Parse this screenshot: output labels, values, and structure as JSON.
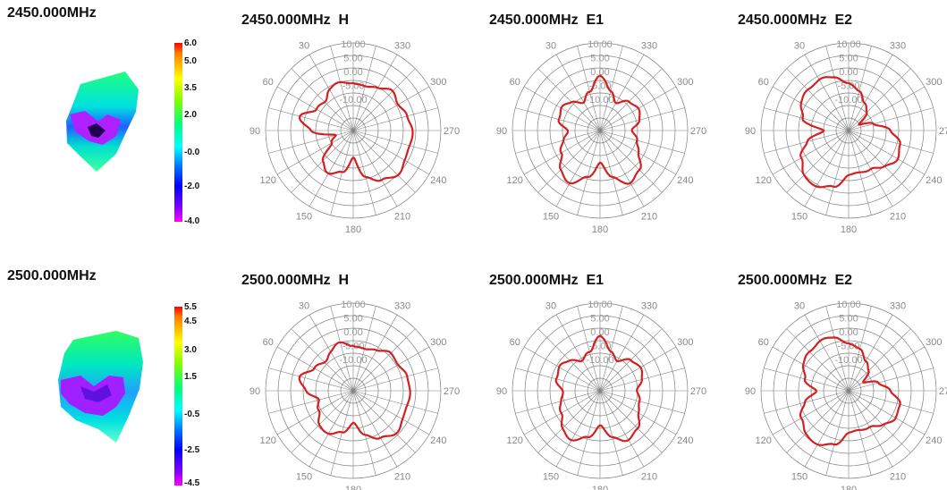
{
  "rows": [
    {
      "freq_label": "2450.000MHz",
      "colorbar": {
        "ticks": [
          "6.0",
          "5.0",
          "3.5",
          "2.0",
          "-0.0",
          "-2.0",
          "-4.0"
        ]
      }
    },
    {
      "freq_label": "2500.000MHz",
      "colorbar": {
        "ticks": [
          "5.5",
          "4.5",
          "3.0",
          "1.5",
          "-0.5",
          "-2.5",
          "-4.5"
        ]
      }
    }
  ],
  "colors": {
    "trace": "#d42020",
    "grid": "#808080",
    "text": "#111111"
  },
  "chart_data": [
    {
      "type": "polar",
      "title": "2450.000MHz  H",
      "angles_deg": [
        0,
        30,
        60,
        90,
        120,
        150,
        180,
        210,
        240,
        270,
        300,
        330
      ],
      "r_labels": [
        "10.00",
        "5.00",
        "0.00",
        "-5.00",
        "-10.00"
      ],
      "rlim": [
        -25,
        10
      ],
      "series": [
        {
          "theta": [
            0,
            15,
            30,
            45,
            60,
            75,
            90,
            105,
            120,
            135,
            150,
            165,
            180,
            195,
            210,
            225,
            240,
            255,
            270,
            285,
            300,
            315,
            330,
            345
          ],
          "r": [
            -6,
            -5,
            -6,
            -9,
            -8,
            -3,
            -8,
            -18,
            -15,
            -8,
            -5,
            -8,
            -14,
            -6,
            -2,
            0,
            -1,
            -2,
            -1,
            -3,
            -4,
            -3,
            -5,
            -7
          ]
        }
      ]
    },
    {
      "type": "polar",
      "title": "2450.000MHz  E1",
      "angles_deg": [
        0,
        30,
        60,
        90,
        120,
        150,
        180,
        210,
        240,
        270,
        300,
        330
      ],
      "r_labels": [
        "10.00",
        "5.00",
        "0.00",
        "-5.00",
        "-10.00"
      ],
      "rlim": [
        -25,
        10
      ],
      "series": [
        {
          "theta": [
            0,
            15,
            30,
            45,
            60,
            75,
            90,
            105,
            120,
            135,
            150,
            165,
            180,
            195,
            210,
            225,
            240,
            255,
            270,
            285,
            300,
            315,
            330,
            345
          ],
          "r": [
            -3,
            -9,
            -12,
            -9,
            -7,
            -8,
            -12,
            -10,
            -7,
            -3,
            -0.5,
            -6,
            -12,
            -6,
            -0.5,
            -3,
            -7,
            -10,
            -12,
            -9,
            -7,
            -9,
            -12,
            -9
          ]
        }
      ]
    },
    {
      "type": "polar",
      "title": "2450.000MHz  E2",
      "angles_deg": [
        0,
        30,
        60,
        90,
        120,
        150,
        180,
        210,
        240,
        270,
        300,
        330
      ],
      "r_labels": [
        "10.00",
        "5.00",
        "0.00",
        "-5.00",
        "-10.00"
      ],
      "rlim": [
        -25,
        10
      ],
      "series": [
        {
          "theta": [
            0,
            15,
            30,
            45,
            60,
            75,
            90,
            105,
            120,
            135,
            150,
            165,
            180,
            195,
            210,
            225,
            240,
            255,
            270,
            285,
            300,
            315,
            330,
            345
          ],
          "r": [
            -6,
            -3,
            -1.5,
            -2,
            -3,
            -6,
            -15,
            -8,
            -3,
            0,
            1,
            -2,
            -7,
            -8,
            -7,
            -5,
            -2,
            -4,
            -8,
            -15,
            -20,
            -15,
            -12,
            -9
          ]
        }
      ]
    },
    {
      "type": "polar",
      "title": "2500.000MHz  H",
      "angles_deg": [
        0,
        30,
        60,
        90,
        120,
        150,
        180,
        210,
        240,
        270,
        300,
        330
      ],
      "r_labels": [
        "10.00",
        "5.00",
        "0.00",
        "-5.00",
        "-10.00"
      ],
      "rlim": [
        -25,
        10
      ],
      "series": [
        {
          "theta": [
            0,
            15,
            30,
            45,
            60,
            75,
            90,
            105,
            120,
            135,
            150,
            165,
            180,
            195,
            210,
            225,
            240,
            255,
            270,
            285,
            300,
            315,
            330,
            345
          ],
          "r": [
            -7,
            -5,
            -7,
            -9,
            -7,
            -3,
            -6,
            -11,
            -9,
            -6,
            -5,
            -8,
            -12,
            -7,
            -3,
            -1,
            -2,
            -3,
            -2,
            -3,
            -4,
            -4,
            -6,
            -8
          ]
        }
      ]
    },
    {
      "type": "polar",
      "title": "2500.000MHz  E1",
      "angles_deg": [
        0,
        30,
        60,
        90,
        120,
        150,
        180,
        210,
        240,
        270,
        300,
        330
      ],
      "r_labels": [
        "10.00",
        "5.00",
        "0.00",
        "-5.00",
        "-10.00"
      ],
      "rlim": [
        -25,
        10
      ],
      "series": [
        {
          "theta": [
            0,
            15,
            30,
            45,
            60,
            75,
            90,
            105,
            120,
            135,
            150,
            165,
            180,
            195,
            210,
            225,
            240,
            255,
            270,
            285,
            300,
            315,
            330,
            345
          ],
          "r": [
            -3,
            -9,
            -11,
            -8,
            -6,
            -7,
            -10,
            -9,
            -7,
            -4,
            -2,
            -6,
            -11,
            -6,
            -2,
            -4,
            -7,
            -9,
            -10,
            -8,
            -6,
            -8,
            -11,
            -9
          ]
        }
      ]
    },
    {
      "type": "polar",
      "title": "2500.000MHz  E2",
      "angles_deg": [
        0,
        30,
        60,
        90,
        120,
        150,
        180,
        210,
        240,
        270,
        300,
        330
      ],
      "r_labels": [
        "10.00",
        "5.00",
        "0.00",
        "-5.00",
        "-10.00"
      ],
      "rlim": [
        -25,
        10
      ],
      "series": [
        {
          "theta": [
            0,
            15,
            30,
            45,
            60,
            75,
            90,
            105,
            120,
            135,
            150,
            165,
            180,
            195,
            210,
            225,
            240,
            255,
            270,
            285,
            300,
            315,
            330,
            345
          ],
          "r": [
            -6,
            -3,
            -2,
            -3,
            -4,
            -7,
            -12,
            -7,
            -3,
            -1,
            0,
            -3,
            -8,
            -9,
            -8,
            -6,
            -3,
            -4,
            -8,
            -13,
            -18,
            -14,
            -11,
            -8
          ]
        }
      ]
    }
  ]
}
